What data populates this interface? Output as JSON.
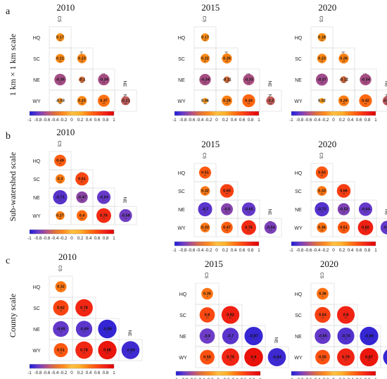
{
  "colorbar": {
    "ticks": [
      "-1",
      "-0.8",
      "-0.6",
      "-0.4",
      "-0.2",
      "0",
      "0.2",
      "0.4",
      "0.6",
      "0.8",
      "1"
    ],
    "colors": [
      "#1c1cd8",
      "#6a3cc8",
      "#b0508c",
      "#e0703a",
      "#ff8a1e",
      "#ffc040",
      "#ffb02a",
      "#ff7a14",
      "#ff4a10",
      "#f02018",
      "#e00000"
    ]
  },
  "chart_data": [
    {
      "type": "heatmap",
      "row_label": "a",
      "scale_label": "1 km × 1 km scale",
      "year": "2010",
      "variables": [
        "CS",
        "HQ",
        "SC",
        "NE",
        "WY"
      ],
      "values": [
        [
          0.17
        ],
        [
          0.21,
          0.23
        ],
        [
          -0.35,
          -0.1,
          -0.34
        ],
        [
          -0.03,
          0.23,
          0.37,
          -0.21
        ]
      ],
      "sig": [
        [
          "**"
        ],
        [
          "**",
          "**"
        ],
        [
          "**",
          "**",
          "**"
        ],
        [
          "**",
          "**",
          "**",
          "**"
        ]
      ]
    },
    {
      "type": "heatmap",
      "row_label": "a",
      "scale_label": "1 km × 1 km scale",
      "year": "2015",
      "variables": [
        "CS",
        "HQ",
        "SC",
        "NE",
        "WY"
      ],
      "values": [
        [
          0.17
        ],
        [
          0.22,
          0.26
        ],
        [
          -0.34,
          -0.11,
          -0.33
        ],
        [
          0.06,
          0.28,
          0.43,
          -0.2
        ]
      ],
      "sig": [
        [
          "**"
        ],
        [
          "**",
          "**"
        ],
        [
          "**",
          "**",
          "**"
        ],
        [
          "**",
          "**",
          "**",
          "**"
        ]
      ]
    },
    {
      "type": "heatmap",
      "row_label": "a",
      "scale_label": "1 km × 1 km scale",
      "year": "2020",
      "variables": [
        "CS",
        "HQ",
        "SC",
        "NE",
        "WY"
      ],
      "values": [
        [
          0.18
        ],
        [
          0.23,
          0.26
        ],
        [
          -0.37,
          -0.12,
          -0.34
        ],
        [
          0.02,
          0.29,
          0.42,
          -0.23
        ]
      ],
      "sig": [
        [
          "**"
        ],
        [
          "**",
          "**"
        ],
        [
          "**",
          "**",
          "**"
        ],
        [
          "",
          "**",
          "**",
          "**"
        ]
      ]
    },
    {
      "type": "heatmap",
      "row_label": "b",
      "scale_label": "Sub-watershed scale",
      "year": "2010",
      "variables": [
        "CS",
        "HQ",
        "SC",
        "NE",
        "WY"
      ],
      "values": [
        [
          0.49
        ],
        [
          0.3,
          0.61
        ],
        [
          -0.71,
          -0.47,
          -0.64
        ],
        [
          0.27,
          0.4,
          0.76,
          -0.58
        ]
      ],
      "sig": [
        [
          "**"
        ],
        [
          "**",
          "**"
        ],
        [
          "**",
          "**",
          "**"
        ],
        [
          "**",
          "**",
          "**",
          "**"
        ]
      ]
    },
    {
      "type": "heatmap",
      "row_label": "b",
      "scale_label": "Sub-watershed scale",
      "year": "2015",
      "variables": [
        "CS",
        "HQ",
        "SC",
        "NE",
        "WY"
      ],
      "values": [
        [
          0.51
        ],
        [
          0.32,
          0.65
        ],
        [
          -0.7,
          -0.5,
          -0.65
        ],
        [
          0.33,
          0.47,
          0.76,
          -0.54
        ]
      ],
      "sig": [
        [
          "**"
        ],
        [
          "**",
          "**"
        ],
        [
          "**",
          "**",
          "**"
        ],
        [
          "**",
          "**",
          "**",
          "**"
        ]
      ]
    },
    {
      "type": "heatmap",
      "row_label": "b",
      "scale_label": "Sub-watershed scale",
      "year": "2020",
      "variables": [
        "CS",
        "HQ",
        "SC",
        "NE",
        "WY"
      ],
      "values": [
        [
          0.53
        ],
        [
          0.33,
          0.66
        ],
        [
          -0.72,
          -0.52,
          -0.64
        ],
        [
          0.36,
          0.51,
          0.82,
          -0.65
        ]
      ],
      "sig": [
        [
          "**"
        ],
        [
          "**",
          "**"
        ],
        [
          "**",
          "**",
          "**"
        ],
        [
          "**",
          "**",
          "**",
          "**"
        ]
      ]
    },
    {
      "type": "heatmap",
      "row_label": "c",
      "scale_label": "County scale",
      "year": "2010",
      "variables": [
        "CS",
        "HQ",
        "SC",
        "NE",
        "WY"
      ],
      "values": [
        [
          0.32
        ],
        [
          0.62,
          0.78
        ],
        [
          -0.65,
          -0.69,
          -0.89
        ],
        [
          0.51,
          0.78,
          0.88,
          -0.83
        ]
      ],
      "sig": [
        [
          "*"
        ],
        [
          "**",
          "**"
        ],
        [
          "**",
          "**",
          "**"
        ],
        [
          "**",
          "**",
          "**",
          "**"
        ]
      ]
    },
    {
      "type": "heatmap",
      "row_label": "c",
      "scale_label": "County scale",
      "year": "2015",
      "variables": [
        "CS",
        "HQ",
        "SC",
        "NE",
        "WY"
      ],
      "values": [
        [
          0.35
        ],
        [
          0.6,
          0.82
        ],
        [
          -0.6,
          -0.7,
          -0.87
        ],
        [
          0.55,
          0.79,
          0.9,
          -0.84
        ]
      ],
      "sig": [
        [
          "*"
        ],
        [
          "**",
          "**"
        ],
        [
          "**",
          "**",
          "**"
        ],
        [
          "**",
          "**",
          "**",
          "**"
        ]
      ]
    },
    {
      "type": "heatmap",
      "row_label": "c",
      "scale_label": "County scale",
      "year": "2020",
      "variables": [
        "CS",
        "HQ",
        "SC",
        "NE",
        "WY"
      ],
      "values": [
        [
          0.36
        ],
        [
          0.64,
          0.8
        ],
        [
          -0.65,
          -0.74,
          -0.88
        ],
        [
          0.55,
          0.79,
          0.87,
          -0.87
        ]
      ],
      "sig": [
        [
          "*"
        ],
        [
          "**",
          "**"
        ],
        [
          "**",
          "**",
          "**"
        ],
        [
          "**",
          "**",
          "**",
          "**"
        ]
      ]
    }
  ]
}
